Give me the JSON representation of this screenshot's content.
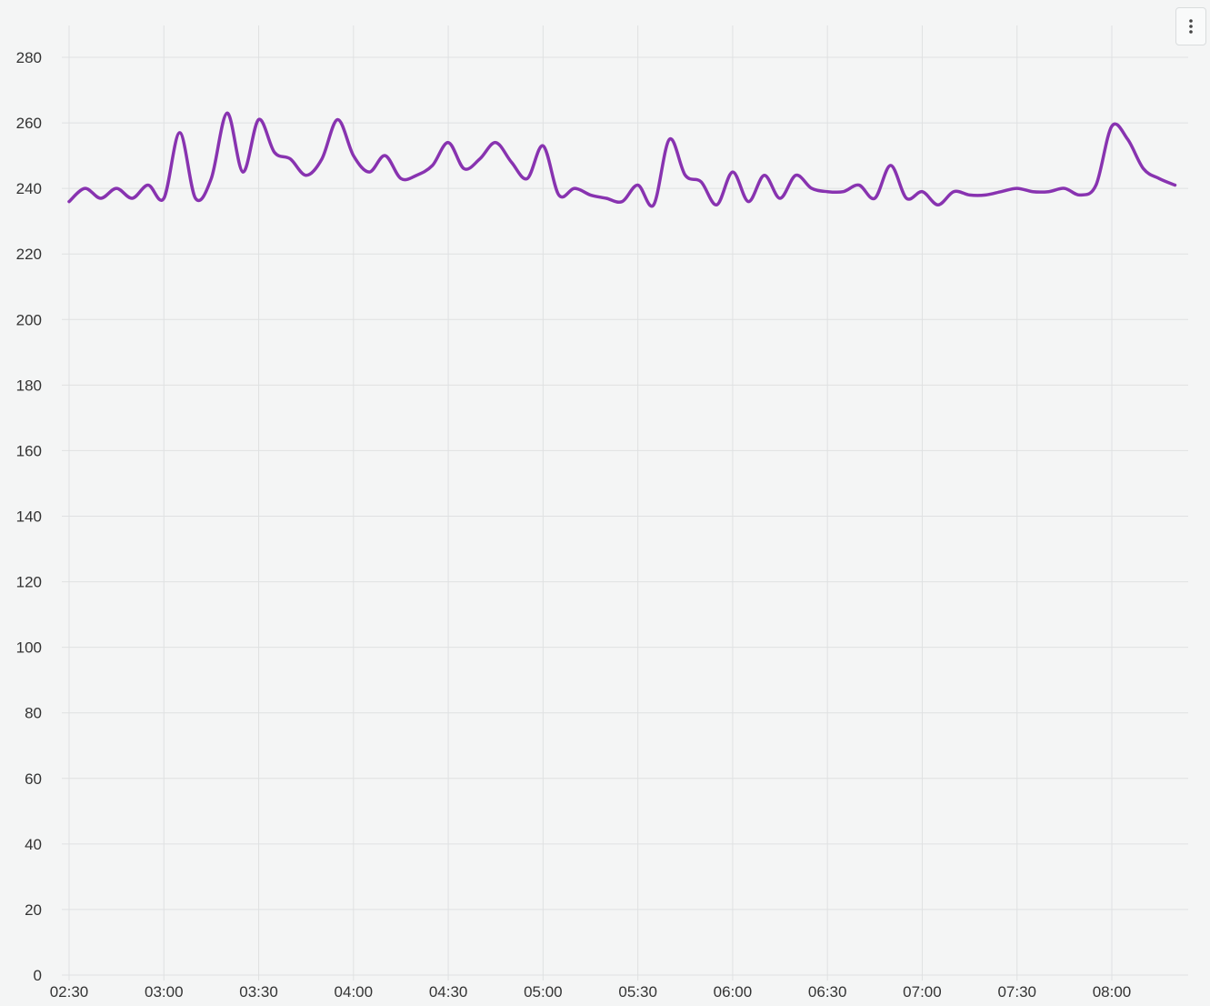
{
  "chart_menu": {
    "icon": "more-vertical-icon"
  },
  "colors": {
    "series": "#8833b0",
    "background": "#f4f5f5",
    "grid": "#dfe1e2"
  },
  "chart_data": {
    "type": "line",
    "title": "",
    "xlabel": "",
    "ylabel": "",
    "grid": true,
    "ylim": [
      0,
      280
    ],
    "xlim": [
      "02:30",
      "08:20"
    ],
    "y_ticks": [
      "0",
      "20",
      "40",
      "60",
      "80",
      "100",
      "120",
      "140",
      "160",
      "180",
      "200",
      "220",
      "240",
      "260",
      "280"
    ],
    "x_ticks": [
      "02:30",
      "03:00",
      "03:30",
      "04:00",
      "04:30",
      "05:00",
      "05:30",
      "06:00",
      "06:30",
      "07:00",
      "07:30",
      "08:00"
    ],
    "series": [
      {
        "x": [
          "02:30",
          "02:35",
          "02:40",
          "02:45",
          "02:50",
          "02:55",
          "03:00",
          "03:05",
          "03:10",
          "03:15",
          "03:20",
          "03:25",
          "03:30",
          "03:35",
          "03:40",
          "03:45",
          "03:50",
          "03:55",
          "04:00",
          "04:05",
          "04:10",
          "04:15",
          "04:20",
          "04:25",
          "04:30",
          "04:35",
          "04:40",
          "04:45",
          "04:50",
          "04:55",
          "05:00",
          "05:05",
          "05:10",
          "05:15",
          "05:20",
          "05:25",
          "05:30",
          "05:35",
          "05:40",
          "05:45",
          "05:50",
          "05:55",
          "06:00",
          "06:05",
          "06:10",
          "06:15",
          "06:20",
          "06:25",
          "06:30",
          "06:35",
          "06:40",
          "06:45",
          "06:50",
          "06:55",
          "07:00",
          "07:05",
          "07:10",
          "07:15",
          "07:20",
          "07:25",
          "07:30",
          "07:35",
          "07:40",
          "07:45",
          "07:50",
          "07:55",
          "08:00",
          "08:05",
          "08:10",
          "08:15",
          "08:20"
        ],
        "values": [
          236,
          240,
          237,
          240,
          237,
          241,
          237,
          257,
          237,
          243,
          263,
          245,
          261,
          251,
          249,
          244,
          249,
          261,
          250,
          245,
          250,
          243,
          244,
          247,
          254,
          246,
          249,
          254,
          248,
          243,
          253,
          238,
          240,
          238,
          237,
          236,
          241,
          235,
          255,
          244,
          242,
          235,
          245,
          236,
          244,
          237,
          244,
          240,
          239,
          239,
          241,
          237,
          247,
          237,
          239,
          235,
          239,
          238,
          238,
          239,
          240,
          239,
          239,
          240,
          238,
          241,
          259,
          255,
          246,
          243,
          241
        ]
      }
    ]
  }
}
